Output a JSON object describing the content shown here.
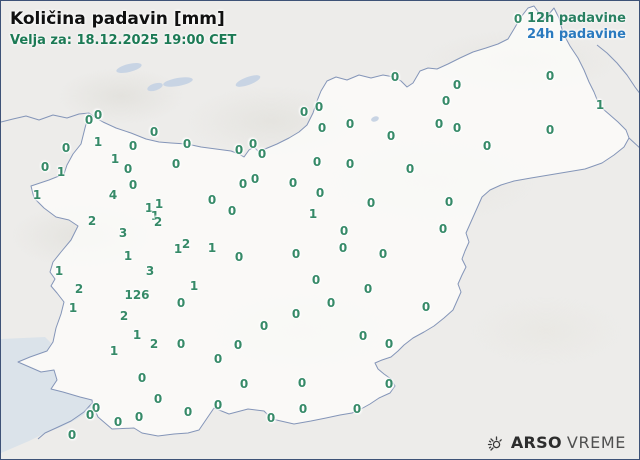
{
  "header": {
    "title": "Količina padavin [mm]",
    "valid_for": "Velja za: 18.12.2025 19:00 CET"
  },
  "legend": {
    "items": [
      {
        "label": "12h padavine",
        "color": "#2a8062"
      },
      {
        "label": "24h padavine",
        "color": "#2b7abf"
      }
    ]
  },
  "branding": {
    "name_bold": "ARSO",
    "name_light": "VREME",
    "icon": "weather-sun-icon"
  },
  "colors": {
    "station": "#368a68",
    "frame": "#3e5277",
    "map-line": "#8495b8",
    "sea": "#dbe3ea",
    "land": "#edecea",
    "title": "#101010",
    "subtitle": "#1c7a55",
    "legend-12h": "#2a8062",
    "legend-24h": "#2b7abf",
    "logo-dark": "#2d2d2d",
    "logo-light": "#4f4f4f",
    "lake": "#c8d4e4"
  },
  "stations": [
    [
      "0",
      88,
      119
    ],
    [
      "0",
      97,
      114
    ],
    [
      "0",
      153,
      131
    ],
    [
      "1",
      97,
      141
    ],
    [
      "0",
      65,
      147
    ],
    [
      "0",
      132,
      145
    ],
    [
      "1",
      114,
      158
    ],
    [
      "0",
      127,
      168
    ],
    [
      "0",
      44,
      166
    ],
    [
      "1",
      60,
      171
    ],
    [
      "1",
      36,
      194
    ],
    [
      "0",
      132,
      184
    ],
    [
      "4",
      112,
      194
    ],
    [
      "2",
      91,
      220
    ],
    [
      "1",
      148,
      207
    ],
    [
      "1",
      158,
      203
    ],
    [
      "1",
      154,
      215
    ],
    [
      "2",
      157,
      221
    ],
    [
      "3",
      122,
      232
    ],
    [
      "1",
      127,
      255
    ],
    [
      "1",
      58,
      270
    ],
    [
      "3",
      149,
      270
    ],
    [
      "2",
      78,
      288
    ],
    [
      "126",
      136,
      294
    ],
    [
      "1",
      72,
      307
    ],
    [
      "2",
      123,
      315
    ],
    [
      "1",
      136,
      334
    ],
    [
      "2",
      153,
      343
    ],
    [
      "1",
      113,
      350
    ],
    [
      "0",
      141,
      377
    ],
    [
      "0",
      157,
      398
    ],
    [
      "0",
      95,
      407
    ],
    [
      "0",
      89,
      414
    ],
    [
      "0",
      71,
      434
    ],
    [
      "0",
      138,
      416
    ],
    [
      "0",
      117,
      421
    ],
    [
      "0",
      186,
      143
    ],
    [
      "0",
      238,
      149
    ],
    [
      "0",
      252,
      143
    ],
    [
      "0",
      261,
      153
    ],
    [
      "0",
      175,
      163
    ],
    [
      "0",
      316,
      161
    ],
    [
      "0",
      211,
      199
    ],
    [
      "0",
      231,
      210
    ],
    [
      "0",
      242,
      183
    ],
    [
      "0",
      254,
      178
    ],
    [
      "0",
      292,
      182
    ],
    [
      "0",
      319,
      192
    ],
    [
      "1",
      312,
      213
    ],
    [
      "2",
      185,
      243
    ],
    [
      "1",
      177,
      248
    ],
    [
      "1",
      211,
      247
    ],
    [
      "0",
      238,
      256
    ],
    [
      "0",
      295,
      253
    ],
    [
      "0",
      315,
      279
    ],
    [
      "1",
      193,
      285
    ],
    [
      "0",
      180,
      302
    ],
    [
      "0",
      303,
      111
    ],
    [
      "0",
      318,
      106
    ],
    [
      "0",
      321,
      127
    ],
    [
      "0",
      349,
      123
    ],
    [
      "0",
      390,
      135
    ],
    [
      "0",
      349,
      163
    ],
    [
      "0",
      409,
      168
    ],
    [
      "0",
      394,
      76
    ],
    [
      "0",
      456,
      84
    ],
    [
      "0",
      445,
      100
    ],
    [
      "0",
      438,
      123
    ],
    [
      "0",
      456,
      127
    ],
    [
      "0",
      486,
      145
    ],
    [
      "0",
      517,
      18
    ],
    [
      "0",
      549,
      75
    ],
    [
      "1",
      599,
      104
    ],
    [
      "0",
      549,
      129
    ],
    [
      "0",
      370,
      202
    ],
    [
      "0",
      448,
      201
    ],
    [
      "0",
      343,
      230
    ],
    [
      "0",
      442,
      228
    ],
    [
      "0",
      342,
      247
    ],
    [
      "0",
      382,
      253
    ],
    [
      "0",
      367,
      288
    ],
    [
      "0",
      330,
      302
    ],
    [
      "0",
      425,
      306
    ],
    [
      "0",
      362,
      335
    ],
    [
      "0",
      388,
      343
    ],
    [
      "0",
      388,
      383
    ],
    [
      "0",
      356,
      408
    ],
    [
      "0",
      295,
      313
    ],
    [
      "0",
      263,
      325
    ],
    [
      "0",
      180,
      343
    ],
    [
      "0",
      237,
      344
    ],
    [
      "0",
      217,
      358
    ],
    [
      "0",
      243,
      383
    ],
    [
      "0",
      301,
      382
    ],
    [
      "0",
      187,
      411
    ],
    [
      "0",
      217,
      404
    ],
    [
      "0",
      302,
      408
    ],
    [
      "0",
      270,
      417
    ]
  ]
}
